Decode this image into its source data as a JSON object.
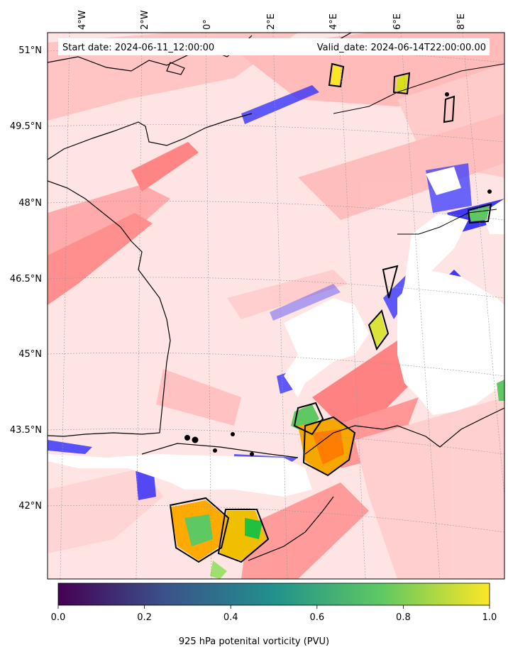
{
  "header": {
    "start_date": "Start date: 2024-06-11_12:00:00",
    "valid_date": "Valid_date: 2024-06-14T22:00:00.00"
  },
  "map": {
    "lon_labels": [
      "4°W",
      "2°W",
      "0°",
      "2°E",
      "4°E",
      "6°E",
      "8°E"
    ],
    "lat_labels": [
      "51°N",
      "49.5°N",
      "48°N",
      "46.5°N",
      "45°N",
      "43.5°N",
      "42°N"
    ]
  },
  "colorbar": {
    "title": "925 hPa potenital vorticity (PVU)",
    "ticks": [
      "0.0",
      "0.2",
      "0.4",
      "0.6",
      "0.8",
      "1.0"
    ],
    "min": 0.0,
    "max": 1.0,
    "stops": [
      "#440154",
      "#3b528b",
      "#21918c",
      "#5ec962",
      "#fde725"
    ]
  },
  "colors": {
    "negative_vorticity": "#0000ff",
    "positive_vorticity": "#ff0000",
    "high_pv_contour": "#000000",
    "masked_terrain": "#ffffff"
  }
}
